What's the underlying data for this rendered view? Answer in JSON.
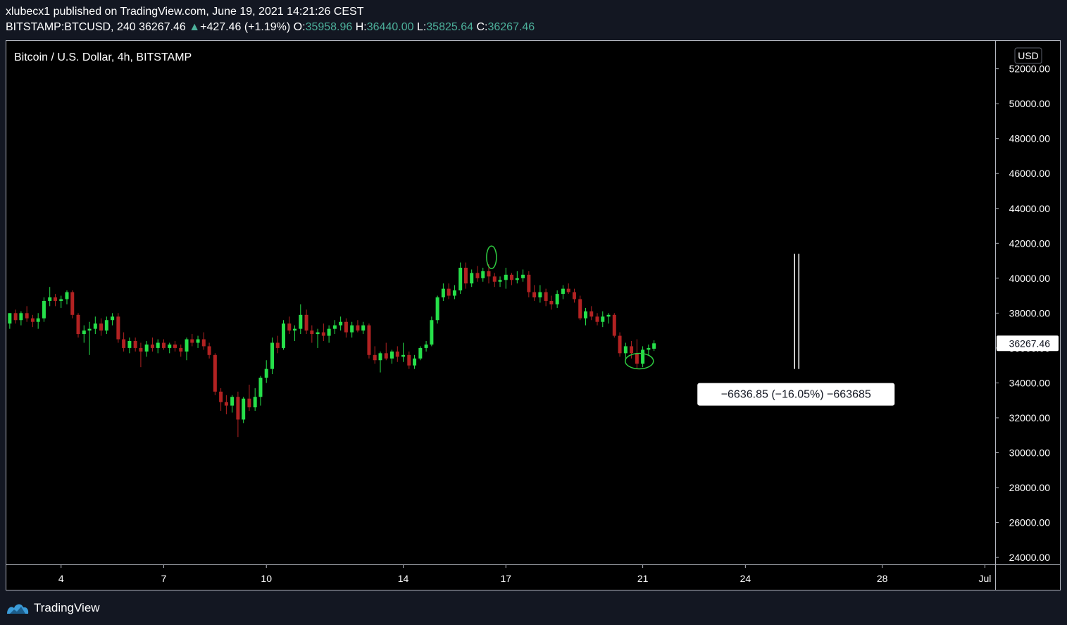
{
  "header": {
    "published_line": "xlubecx1 published on TradingView.com, June 19, 2021 14:21:26 CEST",
    "symbol": "BITSTAMP:BTCUSD, 240",
    "last": "36267.46",
    "change_arrow": "▲",
    "change": "+427.46 (+1.19%)",
    "o_label": "O:",
    "o_value": "35958.96",
    "h_label": "H:",
    "h_value": "36440.00",
    "l_label": "L:",
    "l_value": "35825.64",
    "c_label": "C:",
    "c_value": "36267.46"
  },
  "chart_title": "Bitcoin / U.S. Dollar, 4h, BITSTAMP",
  "currency_button": "USD",
  "last_price_label": "36267.46",
  "measure_label": "−6636.85 (−16.05%) −663685",
  "footer": {
    "brand": "TradingView",
    "logo_icon": "tradingview-logo-icon"
  },
  "colors": {
    "up": "#26e04a",
    "down": "#b22222",
    "background": "#000000",
    "annotation": "#2ecc40"
  },
  "chart_data": {
    "type": "candlestick",
    "title": "Bitcoin / U.S. Dollar, 4h, BITSTAMP",
    "ylim": [
      23600,
      53600
    ],
    "y_ticks": [
      24000,
      26000,
      28000,
      30000,
      32000,
      34000,
      36000,
      38000,
      40000,
      42000,
      44000,
      46000,
      48000,
      50000,
      52000
    ],
    "y_tick_labels": [
      "24000.00",
      "26000.00",
      "28000.00",
      "30000.00",
      "32000.00",
      "34000.00",
      "36000.00",
      "38000.00",
      "40000.00",
      "42000.00",
      "44000.00",
      "46000.00",
      "48000.00",
      "50000.00",
      "52000.00"
    ],
    "x_ticks": [
      {
        "label": "4",
        "day": 4
      },
      {
        "label": "7",
        "day": 7
      },
      {
        "label": "10",
        "day": 10
      },
      {
        "label": "14",
        "day": 14
      },
      {
        "label": "17",
        "day": 17
      },
      {
        "label": "21",
        "day": 21
      },
      {
        "label": "24",
        "day": 24
      },
      {
        "label": "28",
        "day": 28
      },
      {
        "label": "Jul",
        "day": 31
      }
    ],
    "x_range_days": [
      2.4,
      31.3
    ],
    "candles": [
      {
        "day": 2.5,
        "o": 37400,
        "h": 38000,
        "l": 37100,
        "c": 38000
      },
      {
        "day": 2.67,
        "o": 38000,
        "h": 38200,
        "l": 37400,
        "c": 37600
      },
      {
        "day": 2.83,
        "o": 37600,
        "h": 38100,
        "l": 37300,
        "c": 38000
      },
      {
        "day": 3.0,
        "o": 38000,
        "h": 38400,
        "l": 37500,
        "c": 37700
      },
      {
        "day": 3.17,
        "o": 37700,
        "h": 37900,
        "l": 37200,
        "c": 37500
      },
      {
        "day": 3.33,
        "o": 37500,
        "h": 38000,
        "l": 37100,
        "c": 37700
      },
      {
        "day": 3.5,
        "o": 37700,
        "h": 38900,
        "l": 37500,
        "c": 38700
      },
      {
        "day": 3.67,
        "o": 38700,
        "h": 39500,
        "l": 38400,
        "c": 38900
      },
      {
        "day": 3.83,
        "o": 38900,
        "h": 39100,
        "l": 38400,
        "c": 38700
      },
      {
        "day": 4.0,
        "o": 38700,
        "h": 39000,
        "l": 38300,
        "c": 38800
      },
      {
        "day": 4.17,
        "o": 38800,
        "h": 39300,
        "l": 38500,
        "c": 39200
      },
      {
        "day": 4.33,
        "o": 39200,
        "h": 39300,
        "l": 37700,
        "c": 37900
      },
      {
        "day": 4.5,
        "o": 37900,
        "h": 38000,
        "l": 36600,
        "c": 36800
      },
      {
        "day": 4.67,
        "o": 36800,
        "h": 37300,
        "l": 36300,
        "c": 37000
      },
      {
        "day": 4.83,
        "o": 37000,
        "h": 37500,
        "l": 35600,
        "c": 37100
      },
      {
        "day": 5.0,
        "o": 37100,
        "h": 37800,
        "l": 36800,
        "c": 37400
      },
      {
        "day": 5.17,
        "o": 37400,
        "h": 37700,
        "l": 36700,
        "c": 37000
      },
      {
        "day": 5.33,
        "o": 37000,
        "h": 37800,
        "l": 36800,
        "c": 37600
      },
      {
        "day": 5.5,
        "o": 37600,
        "h": 38000,
        "l": 37300,
        "c": 37800
      },
      {
        "day": 5.67,
        "o": 37800,
        "h": 38000,
        "l": 36300,
        "c": 36500
      },
      {
        "day": 5.83,
        "o": 36500,
        "h": 36900,
        "l": 35800,
        "c": 36000
      },
      {
        "day": 6.0,
        "o": 36000,
        "h": 36600,
        "l": 35700,
        "c": 36400
      },
      {
        "day": 6.17,
        "o": 36400,
        "h": 36600,
        "l": 35800,
        "c": 36000
      },
      {
        "day": 6.33,
        "o": 36000,
        "h": 36300,
        "l": 34900,
        "c": 35800
      },
      {
        "day": 6.5,
        "o": 35800,
        "h": 36400,
        "l": 35500,
        "c": 36200
      },
      {
        "day": 6.67,
        "o": 36200,
        "h": 36600,
        "l": 35800,
        "c": 36000
      },
      {
        "day": 6.83,
        "o": 36000,
        "h": 36500,
        "l": 35700,
        "c": 36300
      },
      {
        "day": 7.0,
        "o": 36300,
        "h": 36500,
        "l": 35900,
        "c": 36000
      },
      {
        "day": 7.17,
        "o": 36000,
        "h": 36300,
        "l": 35700,
        "c": 36200
      },
      {
        "day": 7.33,
        "o": 36200,
        "h": 36400,
        "l": 35800,
        "c": 36000
      },
      {
        "day": 7.5,
        "o": 36000,
        "h": 36200,
        "l": 35500,
        "c": 35800
      },
      {
        "day": 7.67,
        "o": 35800,
        "h": 36600,
        "l": 35300,
        "c": 36500
      },
      {
        "day": 7.83,
        "o": 36500,
        "h": 36800,
        "l": 36100,
        "c": 36300
      },
      {
        "day": 8.0,
        "o": 36300,
        "h": 36700,
        "l": 36000,
        "c": 36500
      },
      {
        "day": 8.17,
        "o": 36500,
        "h": 36900,
        "l": 35900,
        "c": 36100
      },
      {
        "day": 8.33,
        "o": 36100,
        "h": 36300,
        "l": 35400,
        "c": 35600
      },
      {
        "day": 8.5,
        "o": 35600,
        "h": 35700,
        "l": 33300,
        "c": 33500
      },
      {
        "day": 8.67,
        "o": 33500,
        "h": 33700,
        "l": 32400,
        "c": 32900
      },
      {
        "day": 8.83,
        "o": 32900,
        "h": 33300,
        "l": 32200,
        "c": 32700
      },
      {
        "day": 9.0,
        "o": 32700,
        "h": 33300,
        "l": 32300,
        "c": 33200
      },
      {
        "day": 9.17,
        "o": 33200,
        "h": 33500,
        "l": 30900,
        "c": 31900
      },
      {
        "day": 9.33,
        "o": 31900,
        "h": 33200,
        "l": 31700,
        "c": 33100
      },
      {
        "day": 9.5,
        "o": 33100,
        "h": 33900,
        "l": 32400,
        "c": 32600
      },
      {
        "day": 9.67,
        "o": 32600,
        "h": 33700,
        "l": 32400,
        "c": 33200
      },
      {
        "day": 9.83,
        "o": 33200,
        "h": 34400,
        "l": 32700,
        "c": 34300
      },
      {
        "day": 10.0,
        "o": 34300,
        "h": 35300,
        "l": 34000,
        "c": 34800
      },
      {
        "day": 10.17,
        "o": 34800,
        "h": 36600,
        "l": 34500,
        "c": 36300
      },
      {
        "day": 10.33,
        "o": 36300,
        "h": 36700,
        "l": 35700,
        "c": 36000
      },
      {
        "day": 10.5,
        "o": 36000,
        "h": 37600,
        "l": 35900,
        "c": 37400
      },
      {
        "day": 10.67,
        "o": 37400,
        "h": 37800,
        "l": 36800,
        "c": 37000
      },
      {
        "day": 10.83,
        "o": 37000,
        "h": 37300,
        "l": 36400,
        "c": 37100
      },
      {
        "day": 11.0,
        "o": 37100,
        "h": 38500,
        "l": 36800,
        "c": 37900
      },
      {
        "day": 11.17,
        "o": 37900,
        "h": 38200,
        "l": 36800,
        "c": 37000
      },
      {
        "day": 11.33,
        "o": 37000,
        "h": 37300,
        "l": 36300,
        "c": 36800
      },
      {
        "day": 11.5,
        "o": 36800,
        "h": 37100,
        "l": 36000,
        "c": 36900
      },
      {
        "day": 11.67,
        "o": 36900,
        "h": 37400,
        "l": 36400,
        "c": 36700
      },
      {
        "day": 11.83,
        "o": 36700,
        "h": 37300,
        "l": 36300,
        "c": 37100
      },
      {
        "day": 12.0,
        "o": 37100,
        "h": 37600,
        "l": 36800,
        "c": 37300
      },
      {
        "day": 12.17,
        "o": 37300,
        "h": 37800,
        "l": 37000,
        "c": 37500
      },
      {
        "day": 12.33,
        "o": 37500,
        "h": 37700,
        "l": 36600,
        "c": 36900
      },
      {
        "day": 12.5,
        "o": 36900,
        "h": 37500,
        "l": 36600,
        "c": 37300
      },
      {
        "day": 12.67,
        "o": 37300,
        "h": 37600,
        "l": 36900,
        "c": 37000
      },
      {
        "day": 12.83,
        "o": 37000,
        "h": 37500,
        "l": 36800,
        "c": 37300
      },
      {
        "day": 13.0,
        "o": 37300,
        "h": 37400,
        "l": 35400,
        "c": 35600
      },
      {
        "day": 13.17,
        "o": 35600,
        "h": 36100,
        "l": 35100,
        "c": 35300
      },
      {
        "day": 13.33,
        "o": 35300,
        "h": 35800,
        "l": 34600,
        "c": 35700
      },
      {
        "day": 13.5,
        "o": 35700,
        "h": 36300,
        "l": 35300,
        "c": 35400
      },
      {
        "day": 13.67,
        "o": 35400,
        "h": 35900,
        "l": 35100,
        "c": 35800
      },
      {
        "day": 13.83,
        "o": 35800,
        "h": 36100,
        "l": 35200,
        "c": 35500
      },
      {
        "day": 14.0,
        "o": 35500,
        "h": 36300,
        "l": 35200,
        "c": 35600
      },
      {
        "day": 14.17,
        "o": 35600,
        "h": 35800,
        "l": 34800,
        "c": 35000
      },
      {
        "day": 14.33,
        "o": 35000,
        "h": 35600,
        "l": 34800,
        "c": 35400
      },
      {
        "day": 14.5,
        "o": 35400,
        "h": 36100,
        "l": 35300,
        "c": 36000
      },
      {
        "day": 14.67,
        "o": 36000,
        "h": 36400,
        "l": 35800,
        "c": 36200
      },
      {
        "day": 14.83,
        "o": 36200,
        "h": 37800,
        "l": 36100,
        "c": 37600
      },
      {
        "day": 15.0,
        "o": 37600,
        "h": 39000,
        "l": 37400,
        "c": 38900
      },
      {
        "day": 15.17,
        "o": 38900,
        "h": 39700,
        "l": 38700,
        "c": 39400
      },
      {
        "day": 15.33,
        "o": 39400,
        "h": 39700,
        "l": 38800,
        "c": 39000
      },
      {
        "day": 15.5,
        "o": 39000,
        "h": 39600,
        "l": 38800,
        "c": 39300
      },
      {
        "day": 15.67,
        "o": 39300,
        "h": 40900,
        "l": 39100,
        "c": 40600
      },
      {
        "day": 15.83,
        "o": 40600,
        "h": 40900,
        "l": 39400,
        "c": 39700
      },
      {
        "day": 16.0,
        "o": 39700,
        "h": 40500,
        "l": 39500,
        "c": 40300
      },
      {
        "day": 16.17,
        "o": 40300,
        "h": 40700,
        "l": 39800,
        "c": 40000
      },
      {
        "day": 16.33,
        "o": 40000,
        "h": 40600,
        "l": 39800,
        "c": 40400
      },
      {
        "day": 16.5,
        "o": 40400,
        "h": 40800,
        "l": 39700,
        "c": 40100
      },
      {
        "day": 16.67,
        "o": 40100,
        "h": 40300,
        "l": 39500,
        "c": 39800
      },
      {
        "day": 16.83,
        "o": 39800,
        "h": 40100,
        "l": 39500,
        "c": 39900
      },
      {
        "day": 17.0,
        "o": 39900,
        "h": 40600,
        "l": 39400,
        "c": 40200
      },
      {
        "day": 17.17,
        "o": 40200,
        "h": 40300,
        "l": 39600,
        "c": 39900
      },
      {
        "day": 17.33,
        "o": 39900,
        "h": 40400,
        "l": 39700,
        "c": 40000
      },
      {
        "day": 17.5,
        "o": 40000,
        "h": 40500,
        "l": 39800,
        "c": 40200
      },
      {
        "day": 17.67,
        "o": 40200,
        "h": 40400,
        "l": 38900,
        "c": 39200
      },
      {
        "day": 17.83,
        "o": 39200,
        "h": 39600,
        "l": 38700,
        "c": 38900
      },
      {
        "day": 18.0,
        "o": 38900,
        "h": 39600,
        "l": 38600,
        "c": 39200
      },
      {
        "day": 18.17,
        "o": 39200,
        "h": 39400,
        "l": 38400,
        "c": 38700
      },
      {
        "day": 18.33,
        "o": 38700,
        "h": 39000,
        "l": 38200,
        "c": 38500
      },
      {
        "day": 18.5,
        "o": 38500,
        "h": 39300,
        "l": 38300,
        "c": 39100
      },
      {
        "day": 18.67,
        "o": 39100,
        "h": 39600,
        "l": 38800,
        "c": 39400
      },
      {
        "day": 18.83,
        "o": 39400,
        "h": 39700,
        "l": 39100,
        "c": 39200
      },
      {
        "day": 19.0,
        "o": 39200,
        "h": 39400,
        "l": 38600,
        "c": 38800
      },
      {
        "day": 19.17,
        "o": 38800,
        "h": 39000,
        "l": 37600,
        "c": 37700
      },
      {
        "day": 19.33,
        "o": 37700,
        "h": 38300,
        "l": 37300,
        "c": 38100
      },
      {
        "day": 19.5,
        "o": 38100,
        "h": 38400,
        "l": 37600,
        "c": 37800
      },
      {
        "day": 19.67,
        "o": 37800,
        "h": 38000,
        "l": 37300,
        "c": 37500
      },
      {
        "day": 19.83,
        "o": 37500,
        "h": 38100,
        "l": 37200,
        "c": 37800
      },
      {
        "day": 20.0,
        "o": 37800,
        "h": 38000,
        "l": 37400,
        "c": 37900
      },
      {
        "day": 20.17,
        "o": 37900,
        "h": 38000,
        "l": 36600,
        "c": 36700
      },
      {
        "day": 20.33,
        "o": 36700,
        "h": 36900,
        "l": 35500,
        "c": 35700
      },
      {
        "day": 20.5,
        "o": 35700,
        "h": 36300,
        "l": 35300,
        "c": 36100
      },
      {
        "day": 20.67,
        "o": 36100,
        "h": 36400,
        "l": 35400,
        "c": 35700
      },
      {
        "day": 20.83,
        "o": 35700,
        "h": 36500,
        "l": 34800,
        "c": 35100
      },
      {
        "day": 21.0,
        "o": 35100,
        "h": 36100,
        "l": 34900,
        "c": 35900
      },
      {
        "day": 21.17,
        "o": 35900,
        "h": 36200,
        "l": 35600,
        "c": 36000
      },
      {
        "day": 21.33,
        "o": 35958.96,
        "h": 36440.0,
        "l": 35825.64,
        "c": 36267.46
      }
    ],
    "annotations": [
      {
        "type": "ellipse",
        "day": 16.58,
        "price": 41200,
        "note": "top highlight"
      },
      {
        "type": "ellipse",
        "day": 20.9,
        "price": 35250,
        "note": "bottom highlight"
      },
      {
        "type": "price_range",
        "day": 25.5,
        "from": 41400,
        "to": 34800,
        "label": "−6636.85 (−16.05%) −663685"
      }
    ],
    "last_price": 36267.46
  }
}
